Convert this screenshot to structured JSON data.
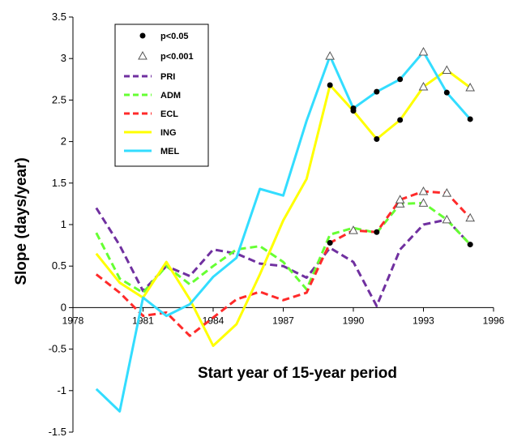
{
  "chart_data": {
    "type": "line",
    "xlabel": "Start year of 15-year period",
    "ylabel": "Slope (days/year)",
    "xlim": [
      1978,
      1996
    ],
    "ylim": [
      -1.5,
      3.5
    ],
    "x_ticks": [
      1978,
      1981,
      1984,
      1987,
      1990,
      1993,
      1996
    ],
    "y_ticks": [
      -1.5,
      -1,
      -0.5,
      0,
      0.5,
      1,
      1.5,
      2,
      2.5,
      3,
      3.5
    ],
    "y_tick_labels": [
      "-1.5",
      "-1",
      "-0.5",
      "0",
      "0.5",
      "1",
      "1.5",
      "2",
      "2.5",
      "3",
      "3.5"
    ],
    "x": [
      1979,
      1980,
      1981,
      1982,
      1983,
      1984,
      1985,
      1986,
      1987,
      1988,
      1989,
      1990,
      1991,
      1992,
      1993,
      1994,
      1995
    ],
    "series": [
      {
        "name": "PRI",
        "color": "#7030a0",
        "dashed": true,
        "values": [
          1.2,
          0.75,
          0.2,
          0.5,
          0.38,
          0.7,
          0.65,
          0.53,
          0.5,
          0.36,
          0.72,
          0.55,
          0.02,
          0.7,
          1.0,
          1.06,
          0.76
        ],
        "sig_p05": [
          16
        ],
        "sig_p001": [
          15
        ]
      },
      {
        "name": "ADM",
        "color": "#66ff33",
        "dashed": true,
        "values": [
          0.9,
          0.35,
          0.18,
          0.5,
          0.28,
          0.5,
          0.7,
          0.74,
          0.55,
          0.22,
          0.88,
          0.96,
          0.9,
          1.25,
          1.26,
          1.06,
          0.76
        ],
        "sig_p05": [],
        "sig_p001": [
          13,
          14
        ]
      },
      {
        "name": "ECL",
        "color": "#ff2a2a",
        "dashed": true,
        "values": [
          0.4,
          0.18,
          -0.1,
          -0.06,
          -0.34,
          -0.12,
          0.1,
          0.19,
          0.09,
          0.18,
          0.78,
          0.93,
          0.91,
          1.3,
          1.4,
          1.38,
          1.08
        ],
        "sig_p05": [
          10,
          12
        ],
        "sig_p001": [
          11,
          13,
          14,
          15,
          16
        ]
      },
      {
        "name": "ING",
        "color": "#ffff00",
        "dashed": false,
        "values": [
          0.65,
          0.3,
          0.12,
          0.55,
          0.1,
          -0.46,
          -0.2,
          0.4,
          1.05,
          1.55,
          2.68,
          2.37,
          2.03,
          2.26,
          2.66,
          2.86,
          2.65
        ],
        "sig_p05": [
          10,
          11,
          12,
          13
        ],
        "sig_p001": [
          14,
          15,
          16
        ]
      },
      {
        "name": "MEL",
        "color": "#33ddff",
        "dashed": false,
        "values": [
          -0.98,
          -1.25,
          0.12,
          -0.1,
          0.04,
          0.37,
          0.6,
          1.43,
          1.35,
          2.25,
          3.03,
          2.4,
          2.6,
          2.75,
          3.08,
          2.59,
          2.27
        ],
        "sig_p05": [
          11,
          12,
          13,
          15,
          16
        ],
        "sig_p001": [
          10,
          14
        ]
      }
    ],
    "legend": {
      "position": "top-left",
      "markers": [
        {
          "label": "p<0.05",
          "symbol": "filled-circle"
        },
        {
          "label": "p<0.001",
          "symbol": "open-triangle"
        }
      ]
    },
    "grid": false
  }
}
